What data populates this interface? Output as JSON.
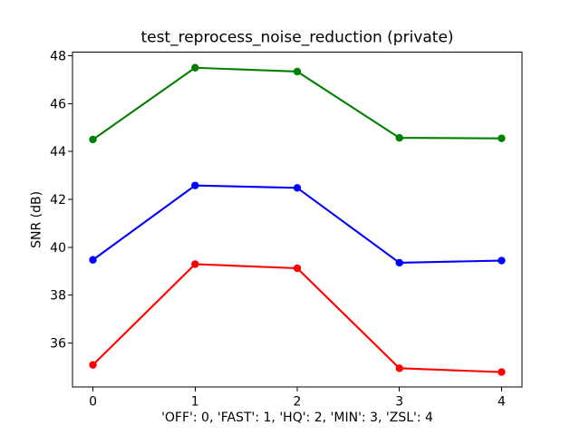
{
  "figure": {
    "background": "#ffffff"
  },
  "chart_data": {
    "type": "line",
    "title": "test_reprocess_noise_reduction (private)",
    "xlabel": "'OFF': 0, 'FAST': 1, 'HQ': 2, 'MIN': 3, 'ZSL': 4",
    "ylabel": "SNR (dB)",
    "x": [
      0,
      1,
      2,
      3,
      4
    ],
    "xticks": [
      0,
      1,
      2,
      3,
      4
    ],
    "yticks": [
      36,
      38,
      40,
      42,
      44,
      46,
      48
    ],
    "xlim": [
      -0.2,
      4.2
    ],
    "ylim": [
      34.15,
      48.15
    ],
    "grid": false,
    "legend_shown": false,
    "marker": "circle",
    "axis_color": "#000000",
    "series": [
      {
        "name": "green",
        "color": "#008000",
        "values": [
          44.5,
          47.5,
          47.34,
          44.57,
          44.55
        ]
      },
      {
        "name": "blue",
        "color": "#0000ff",
        "values": [
          39.47,
          42.58,
          42.48,
          39.35,
          39.44
        ]
      },
      {
        "name": "red",
        "color": "#ff0000",
        "values": [
          35.08,
          39.29,
          39.12,
          34.94,
          34.78
        ]
      }
    ]
  }
}
